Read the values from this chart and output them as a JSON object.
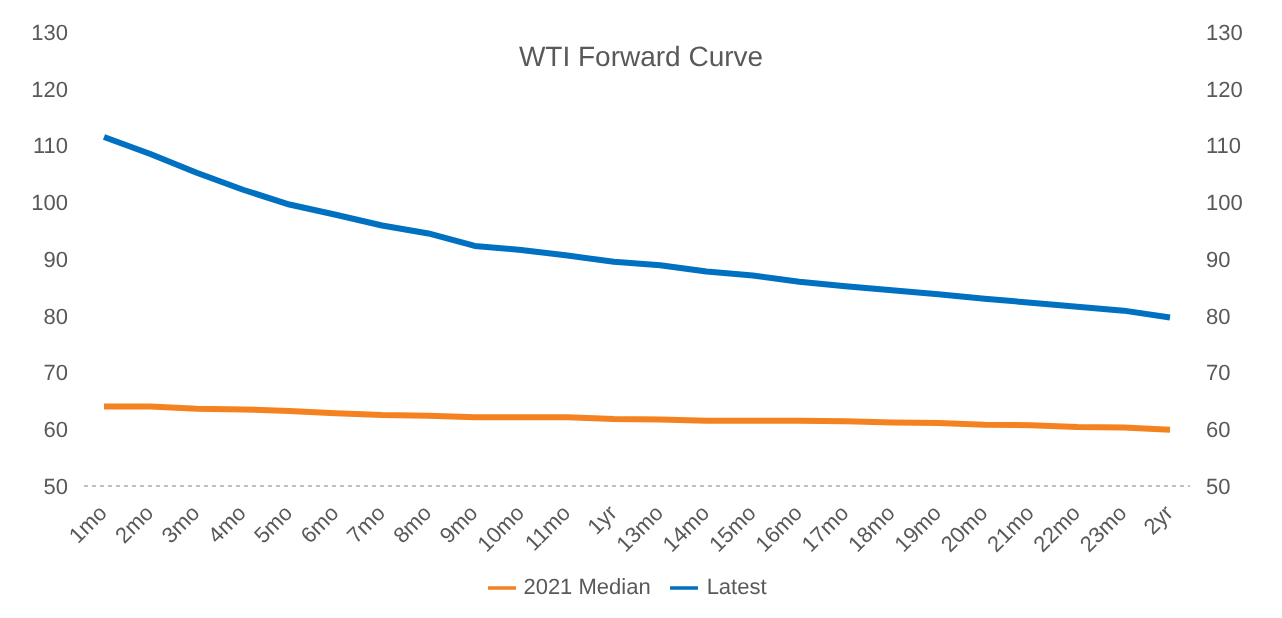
{
  "chart_data": {
    "type": "line",
    "title": "WTI Forward Curve",
    "categories": [
      "1mo",
      "2mo",
      "3mo",
      "4mo",
      "5mo",
      "6mo",
      "7mo",
      "8mo",
      "9mo",
      "10mo",
      "11mo",
      "1yr",
      "13mo",
      "14mo",
      "15mo",
      "16mo",
      "17mo",
      "18mo",
      "19mo",
      "20mo",
      "21mo",
      "22mo",
      "23mo",
      "2yr"
    ],
    "series": [
      {
        "name": "Latest",
        "color": "#0070c0",
        "values": [
          111.5,
          108.5,
          105.2,
          102.2,
          99.6,
          97.8,
          95.9,
          94.5,
          92.3,
          91.6,
          90.6,
          89.5,
          88.9,
          87.8,
          87.1,
          86,
          85.2,
          84.5,
          83.8,
          83,
          82.3,
          81.6,
          80.9,
          79.7
        ]
      },
      {
        "name": "2021 Median",
        "color": "#f58220",
        "values": [
          64,
          64,
          63.6,
          63.5,
          63.2,
          62.8,
          62.5,
          62.4,
          62.1,
          62.1,
          62.1,
          61.8,
          61.7,
          61.5,
          61.5,
          61.5,
          61.4,
          61.2,
          61.1,
          60.8,
          60.7,
          60.4,
          60.3,
          59.9
        ]
      }
    ],
    "ylim": [
      50,
      130
    ],
    "yticks": [
      50,
      60,
      70,
      80,
      90,
      100,
      110,
      120,
      130
    ],
    "y2lim": [
      50,
      130
    ],
    "y2ticks": [
      50,
      60,
      70,
      80,
      90,
      100,
      110,
      120,
      130
    ],
    "grid": false,
    "legend": "bottom",
    "marker": "none",
    "line_style": "solid"
  }
}
